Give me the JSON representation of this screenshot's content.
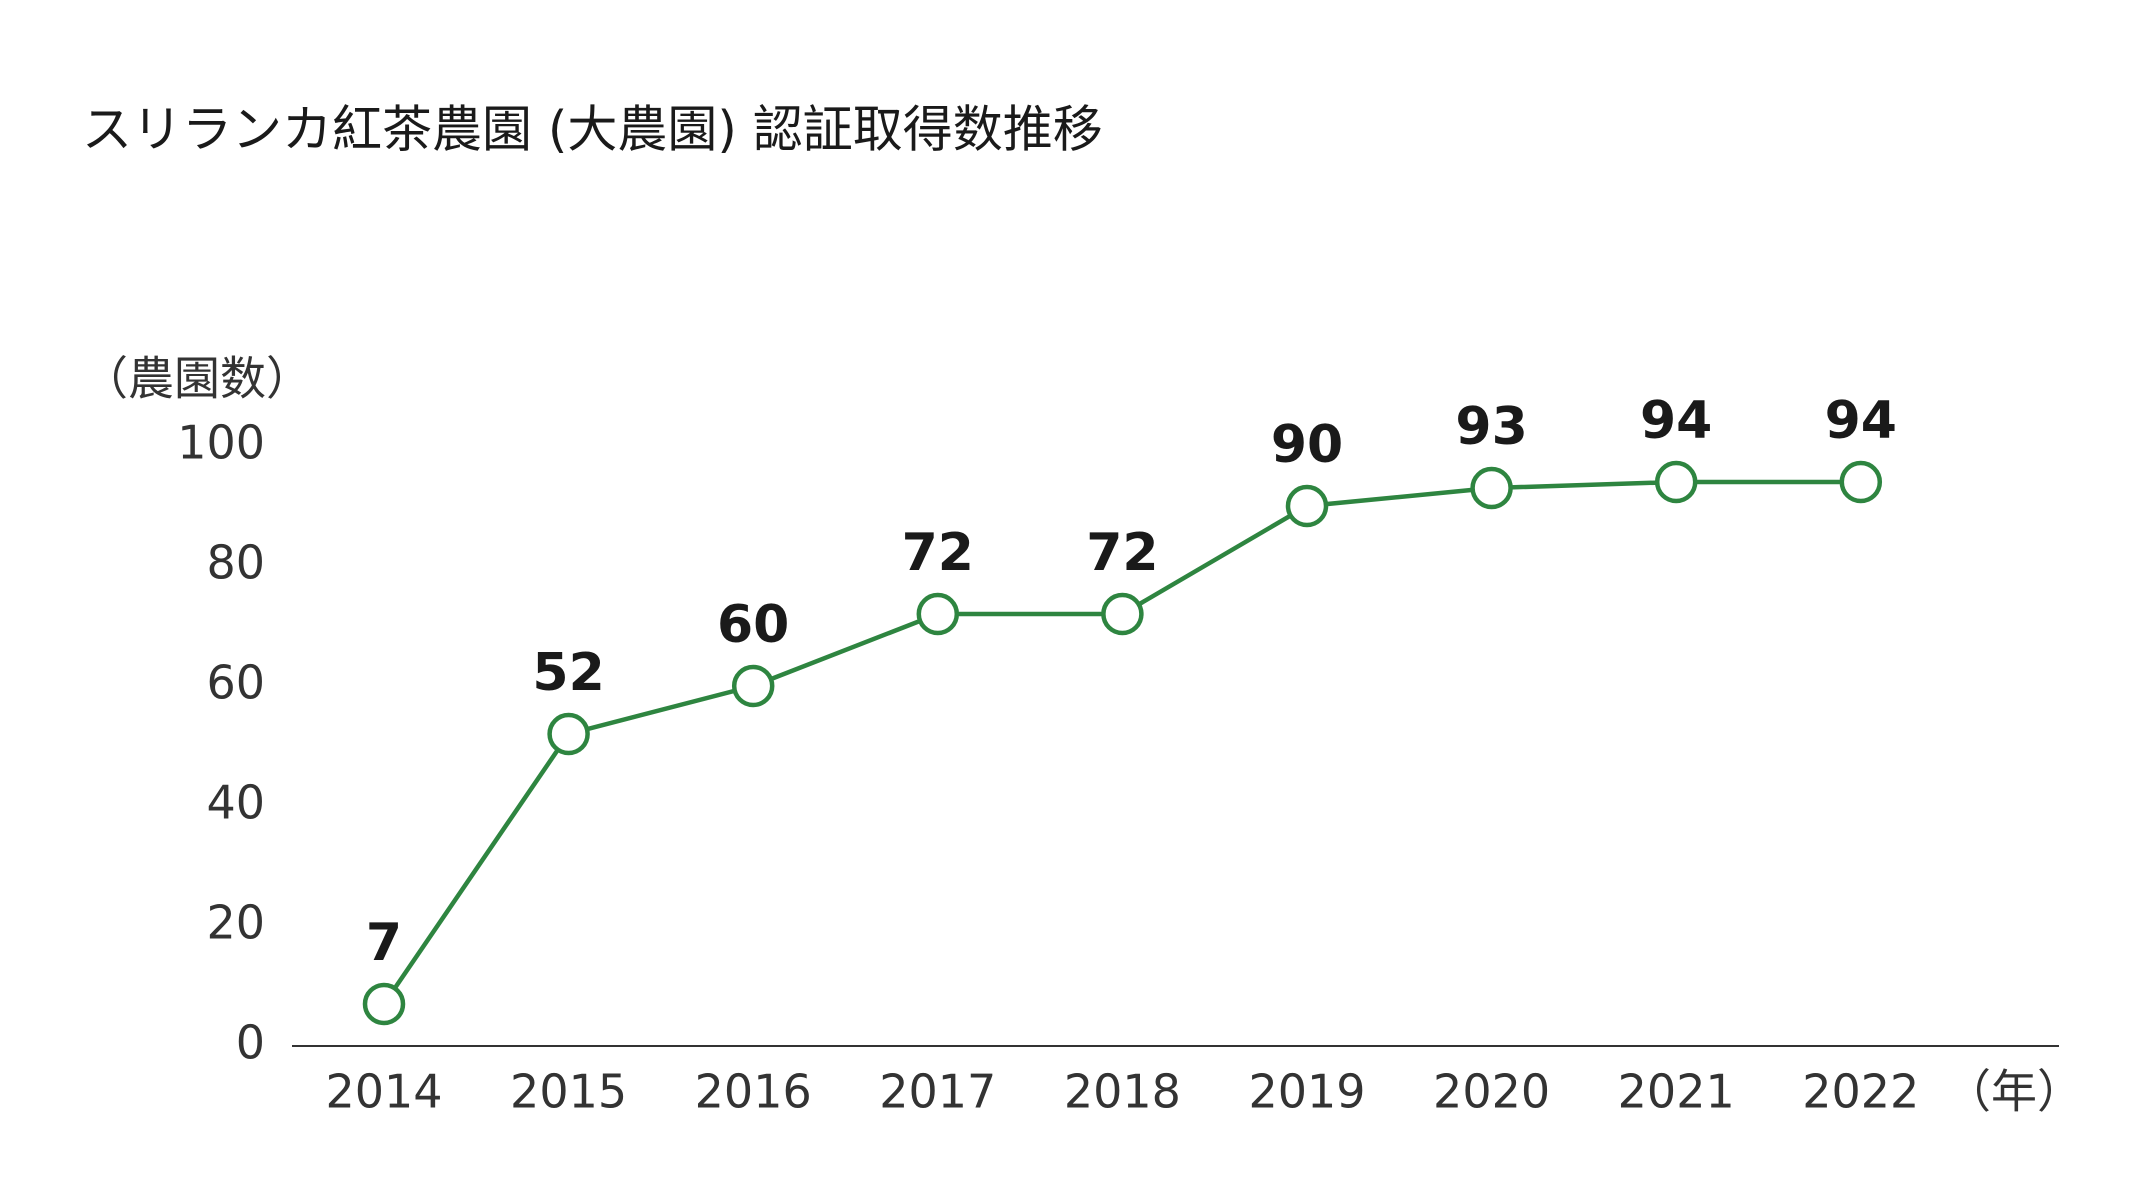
{
  "chart_data": {
    "type": "line",
    "title": "スリランカ紅茶農園 (大農園) 認証取得数推移",
    "y_label": "（農園数）",
    "x_label": "（年）",
    "categories": [
      "2014",
      "2015",
      "2016",
      "2017",
      "2018",
      "2019",
      "2020",
      "2021",
      "2022"
    ],
    "values": [
      7,
      52,
      60,
      72,
      72,
      90,
      93,
      94,
      94
    ],
    "color": "#2e8540",
    "ylim": [
      0,
      100
    ],
    "yticks": [
      0,
      20,
      40,
      60,
      80,
      100
    ],
    "grid": false
  }
}
